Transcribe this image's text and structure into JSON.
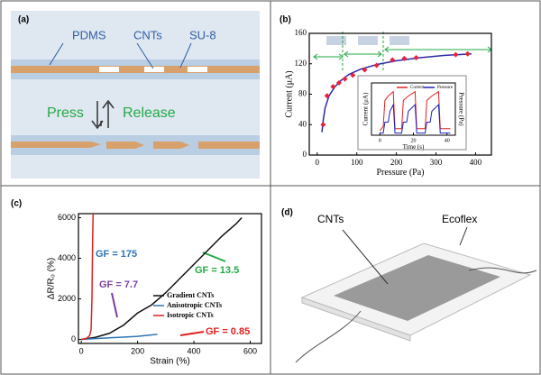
{
  "panels": {
    "a": {
      "label": "(a)",
      "texts": [
        "PDMS",
        "CNTs",
        "SU-8"
      ],
      "press": "Press",
      "release": "Release"
    },
    "b": {
      "label": "(b)"
    },
    "c": {
      "label": "(c)",
      "annotations": [
        {
          "text": "GF = 175",
          "color": "#2f74b5"
        },
        {
          "text": "GF = 7.7",
          "color": "#7b3fa0"
        },
        {
          "text": "GF = 13.5",
          "color": "#22aa44"
        },
        {
          "text": "GF = 0.85",
          "color": "#e02020"
        }
      ]
    },
    "d": {
      "label": "(d)",
      "texts": [
        "CNTs",
        "Ecoflex"
      ]
    }
  },
  "chart_data": [
    {
      "type": "scatter",
      "xlabel": "Pressure (Pa)",
      "ylabel": "Current (μA)",
      "xlim": [
        -20,
        440
      ],
      "ylim": [
        0,
        160
      ],
      "xticks": [
        0,
        100,
        200,
        300,
        400
      ],
      "yticks": [
        0,
        40,
        80,
        120,
        160
      ],
      "series": [
        {
          "color": "#2a2aa8",
          "style": "line",
          "x": [
            12,
            15,
            20,
            30,
            45,
            60,
            80,
            110,
            150,
            200,
            260,
            320,
            390
          ],
          "values": [
            30,
            45,
            62,
            78,
            90,
            98,
            106,
            113,
            119,
            124,
            128,
            131,
            133
          ]
        },
        {
          "color": "#e8203a",
          "style": "markers",
          "x": [
            15,
            25,
            40,
            55,
            70,
            90,
            120,
            150,
            190,
            220,
            250,
            350,
            380
          ],
          "values": [
            40,
            78,
            90,
            95,
            100,
            105,
            112,
            118,
            125,
            127,
            128,
            132,
            133
          ]
        }
      ]
    },
    {
      "type": "line",
      "xlabel": "Time (s)",
      "ylabel": "Current (μA)",
      "y2label": "Pressure (Pa)",
      "xlim": [
        -5,
        45
      ],
      "ylim": [
        0,
        1.2
      ],
      "y2lim": [
        0,
        1.2
      ],
      "xticks": [
        0,
        20,
        40
      ],
      "series": [
        {
          "name": "Current",
          "color": "#e02020",
          "x": [
            0,
            2,
            3,
            5,
            8,
            9,
            13,
            14,
            17,
            21,
            22,
            27,
            28,
            31,
            35,
            36,
            42
          ],
          "values": [
            0.1,
            0.2,
            0.8,
            0.9,
            1.0,
            0.15,
            0.15,
            0.8,
            0.9,
            1.0,
            0.15,
            0.15,
            0.8,
            0.9,
            1.0,
            0.15,
            0.15
          ]
        },
        {
          "name": "Pressure",
          "color": "#2020c0",
          "axis": "y2",
          "x": [
            0,
            2,
            3,
            5,
            6,
            8,
            9,
            13,
            14,
            16,
            17,
            21,
            22,
            27,
            28,
            30,
            31,
            35,
            36,
            42
          ],
          "values": [
            0.05,
            0.05,
            0.3,
            0.3,
            0.55,
            0.7,
            0.05,
            0.05,
            0.3,
            0.3,
            0.55,
            0.7,
            0.05,
            0.05,
            0.3,
            0.3,
            0.55,
            0.7,
            0.05,
            0.05
          ]
        }
      ]
    },
    {
      "type": "line",
      "xlabel": "Strain (%)",
      "ylabel": "ΔR/R₀ (%)",
      "xlim": [
        -10,
        640
      ],
      "ylim": [
        -200,
        6200
      ],
      "xticks": [
        0,
        200,
        400,
        600
      ],
      "yticks": [
        0,
        2000,
        4000,
        6000
      ],
      "series": [
        {
          "name": "Gradient CNTs",
          "color": "#111111",
          "x": [
            0,
            50,
            100,
            150,
            200,
            250,
            300,
            350,
            400,
            450,
            500,
            550,
            570
          ],
          "values": [
            0,
            100,
            300,
            700,
            1300,
            1700,
            2300,
            3000,
            3700,
            4400,
            5100,
            5700,
            6000
          ]
        },
        {
          "name": "Anisotropic CNTs",
          "color": "#2f74b5",
          "x": [
            0,
            50,
            100,
            150,
            200,
            270
          ],
          "values": [
            0,
            40,
            80,
            110,
            150,
            250
          ]
        },
        {
          "name": "Isotropic CNTs",
          "color": "#e02020",
          "x": [
            0,
            10,
            20,
            30,
            35,
            38,
            40,
            42
          ],
          "values": [
            0,
            20,
            60,
            200,
            500,
            2000,
            4500,
            6200
          ]
        }
      ]
    }
  ]
}
